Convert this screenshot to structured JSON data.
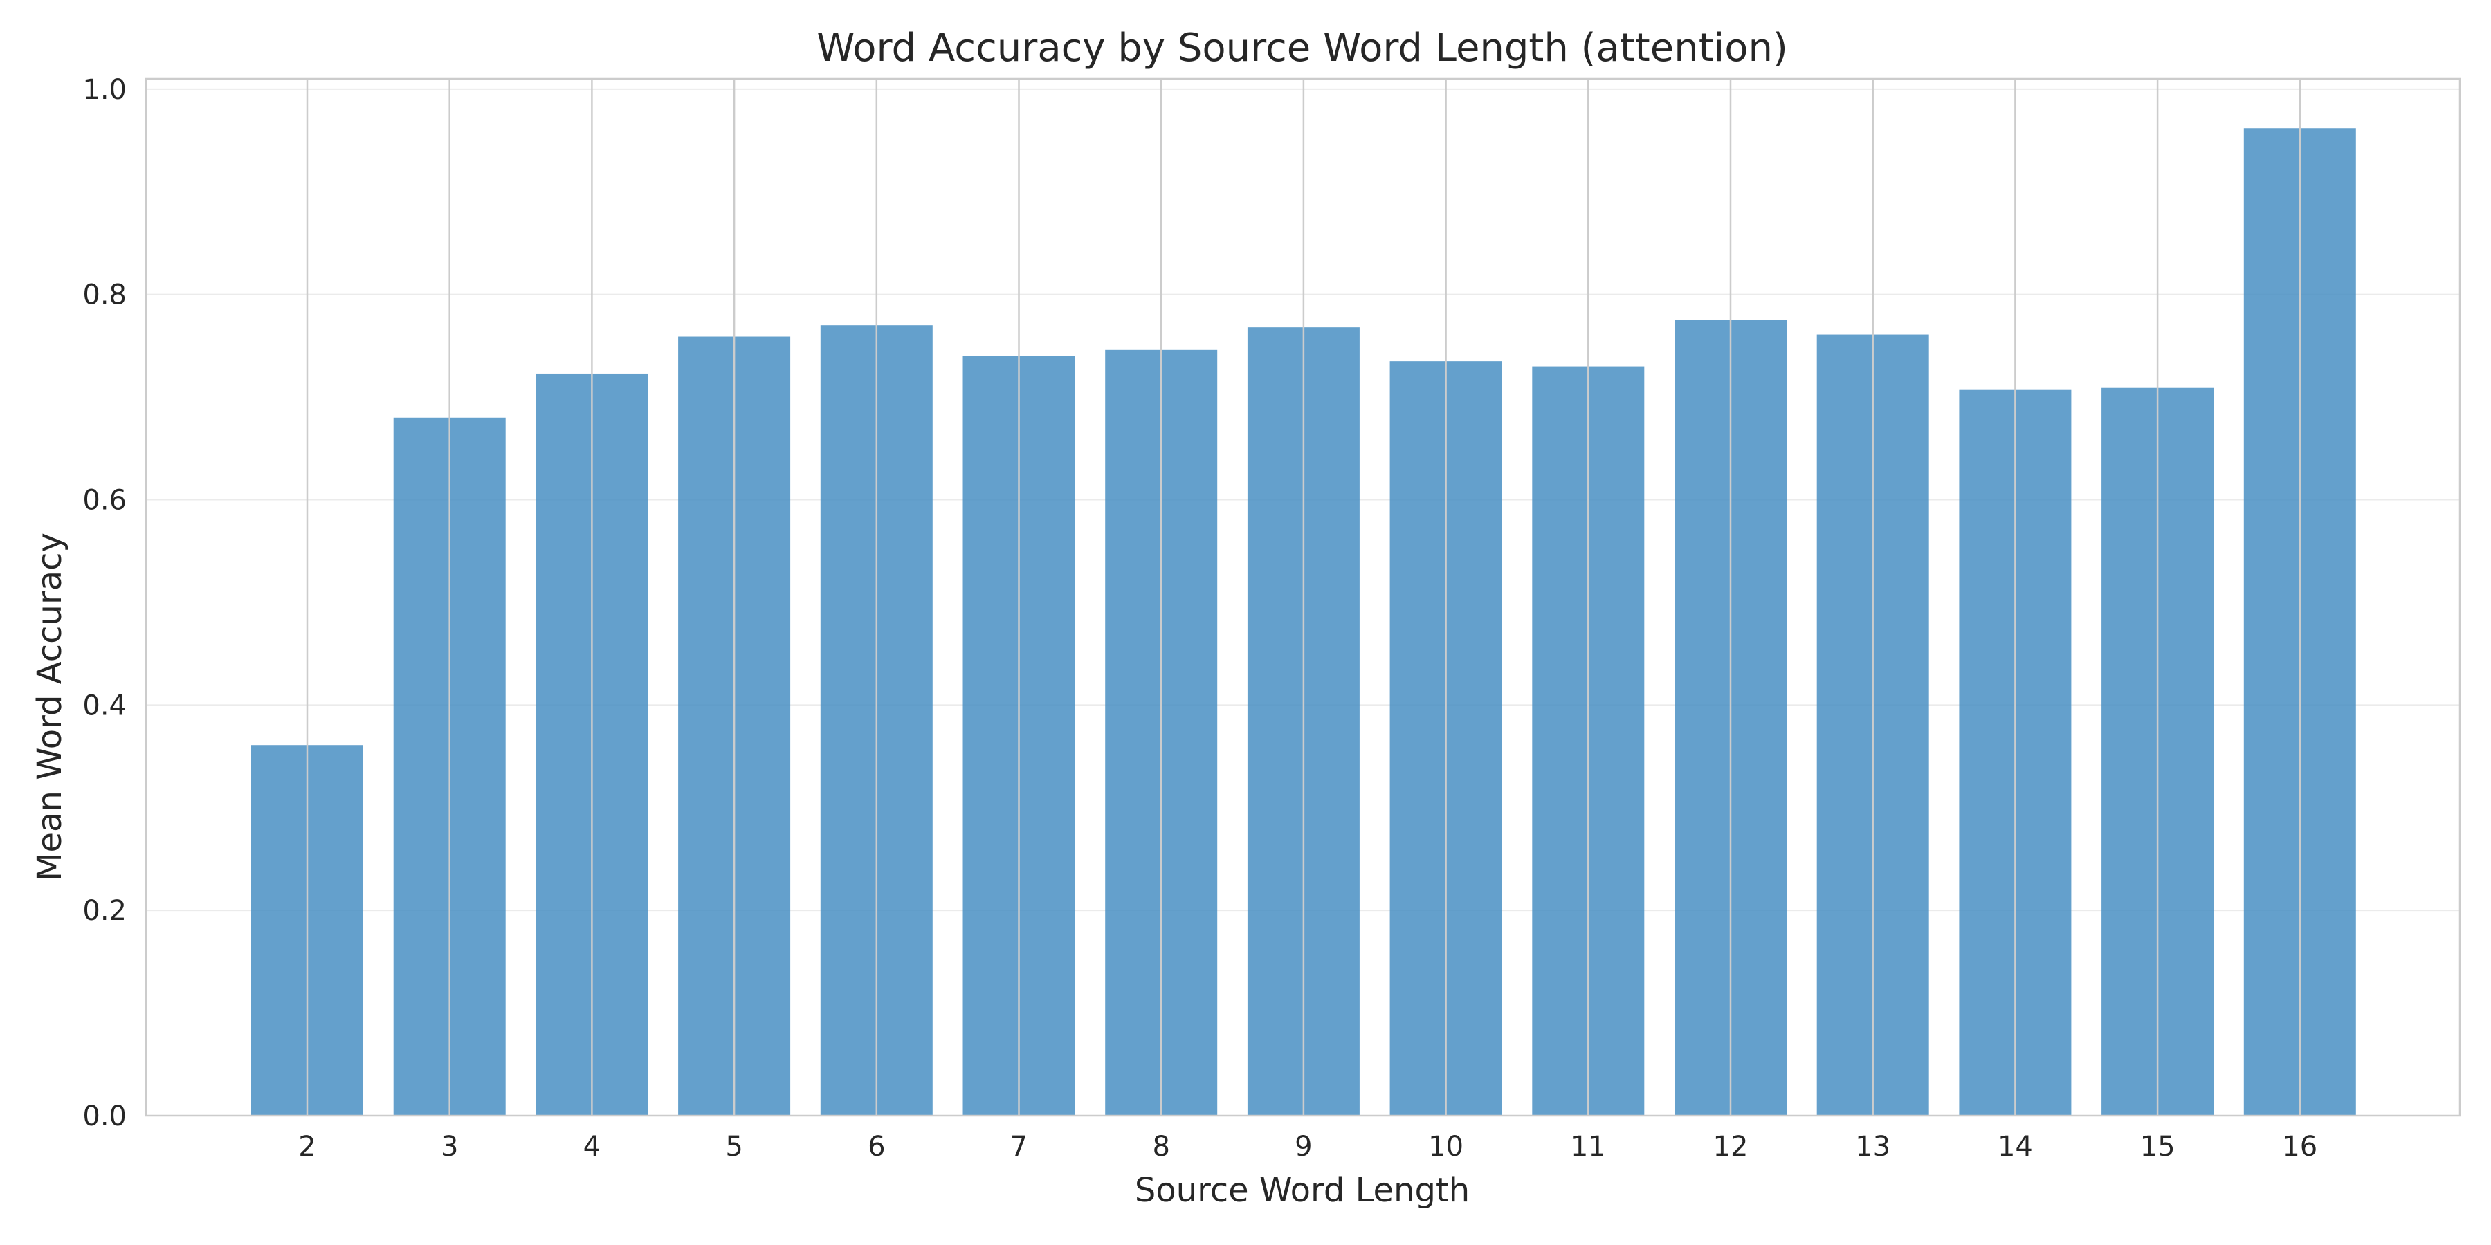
{
  "chart_data": {
    "type": "bar",
    "title": "Word Accuracy by Source Word Length (attention)",
    "xlabel": "Source Word Length",
    "ylabel": "Mean Word Accuracy",
    "categories": [
      "2",
      "3",
      "4",
      "5",
      "6",
      "7",
      "8",
      "9",
      "10",
      "11",
      "12",
      "13",
      "14",
      "15",
      "16"
    ],
    "values": [
      0.361,
      0.68,
      0.723,
      0.759,
      0.77,
      0.74,
      0.746,
      0.768,
      0.735,
      0.73,
      0.775,
      0.761,
      0.707,
      0.709,
      0.962
    ],
    "ylim": [
      0,
      1.01
    ],
    "yticks": [
      "0.0",
      "0.2",
      "0.4",
      "0.6",
      "0.8",
      "1.0"
    ],
    "grid": true,
    "bar_color": "#4a90c4"
  }
}
